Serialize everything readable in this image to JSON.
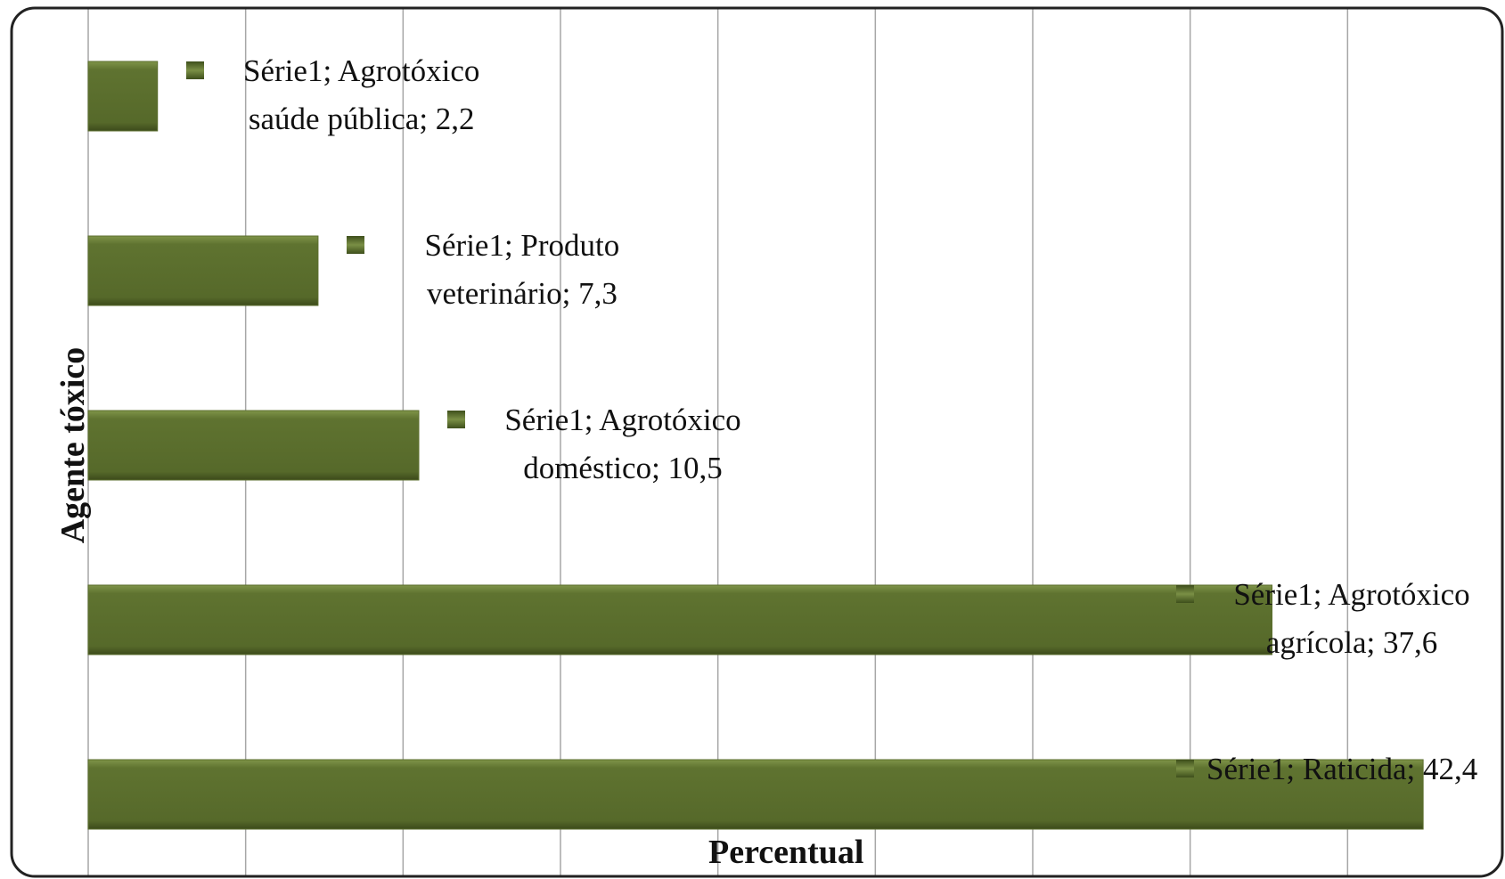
{
  "chart_data": {
    "type": "bar",
    "orientation": "horizontal",
    "x_label": "Percentual",
    "y_label": "Agente tóxico",
    "values": [
      2.2,
      7.3,
      10.5,
      37.6,
      42.4
    ],
    "value_labels": [
      "Série1; Agrotóxico saúde pública; 2,2",
      "Série1; Produto veterinário; 7,3",
      "Série1; Agrotóxico doméstico; 10,5",
      "Série1; Agrotóxico agrícola; 37,6",
      "Série1; Raticida; 42,4"
    ],
    "color": "#5b6e2d",
    "xlim": [
      0,
      45
    ],
    "xticks": [
      0,
      5,
      10,
      15,
      20,
      25,
      30,
      35,
      40,
      45
    ],
    "grid": true
  }
}
